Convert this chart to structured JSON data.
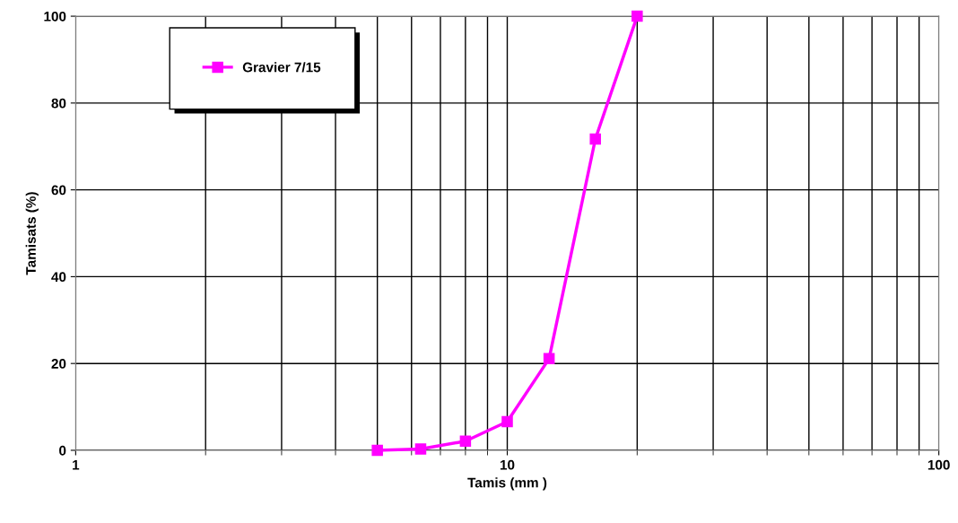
{
  "chart_data": {
    "type": "line",
    "xlabel": "Tamis (mm )",
    "ylabel": "Tamisats (%)",
    "log": "x",
    "xlim": [
      1,
      100
    ],
    "xticks": [
      1,
      10,
      100
    ],
    "ylim": [
      0,
      100
    ],
    "yticks": [
      0,
      20,
      40,
      60,
      80,
      100
    ],
    "grid": true,
    "legend": "top left",
    "marker": "square",
    "line_style": "solid",
    "x": [
      5,
      6.3,
      8,
      10,
      12.5,
      16,
      20
    ],
    "series": [
      {
        "name": "Gravier 7/15",
        "color": "#ff00ff",
        "values": [
          0,
          0.3,
          2.1,
          6.6,
          21.1,
          71.7,
          100
        ]
      }
    ]
  }
}
